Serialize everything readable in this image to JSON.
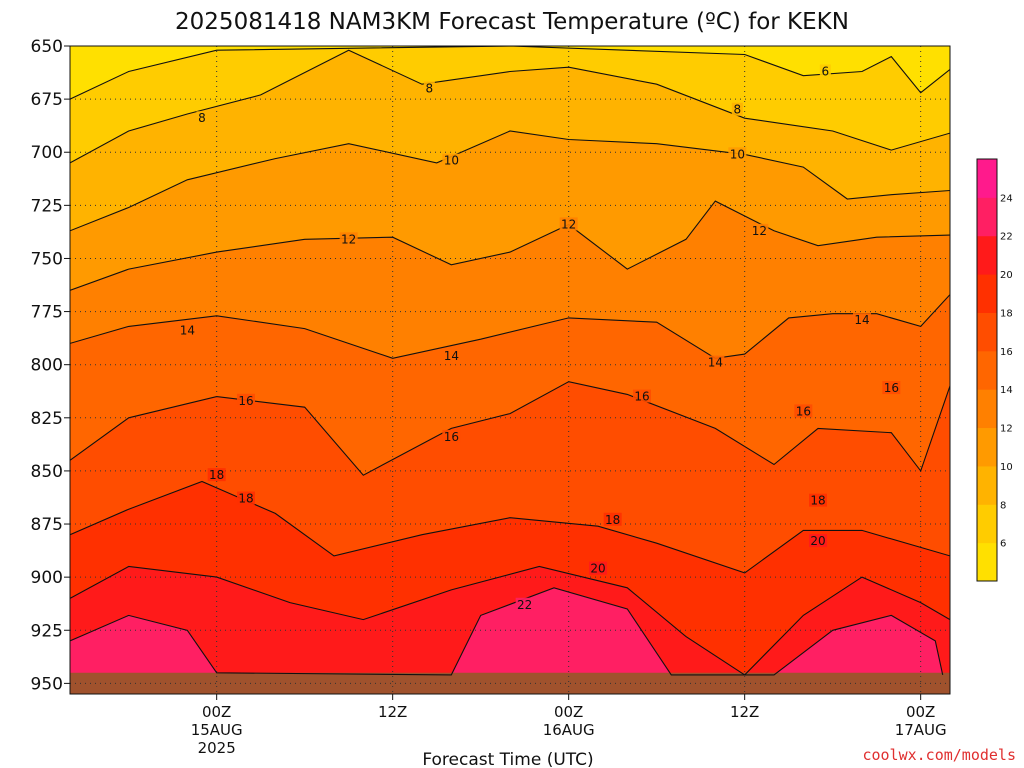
{
  "chart_data": {
    "type": "heatmap",
    "title": "2025081418 NAM3KM Forecast Temperature (ºC) for KEKN",
    "xlabel": "Forecast Time (UTC)",
    "ylabel": "",
    "credit": "coolwx.com/models",
    "y_scale": "pressure (hPa), increasing downward",
    "ylim": [
      650,
      955
    ],
    "y_ticks": [
      650,
      675,
      700,
      725,
      750,
      775,
      800,
      825,
      850,
      875,
      900,
      925,
      950
    ],
    "xlim_hours": [
      -10,
      50
    ],
    "x_ticks": [
      {
        "hour": 0,
        "lines": [
          "00Z",
          "15AUG",
          "2025"
        ]
      },
      {
        "hour": 12,
        "lines": [
          "12Z"
        ]
      },
      {
        "hour": 24,
        "lines": [
          "00Z",
          "16AUG"
        ]
      },
      {
        "hour": 36,
        "lines": [
          "12Z"
        ]
      },
      {
        "hour": 48,
        "lines": [
          "00Z",
          "17AUG"
        ]
      }
    ],
    "grid": true,
    "colorbar": {
      "placement": "right",
      "levels": [
        4,
        6,
        8,
        10,
        12,
        14,
        16,
        18,
        20,
        22,
        24,
        26
      ],
      "tick_labels": [
        "6",
        "8",
        "10",
        "12",
        "14",
        "16",
        "18",
        "20",
        "22",
        "24"
      ],
      "colors": [
        "#ffe000",
        "#ffcc00",
        "#ffb300",
        "#ff9a00",
        "#ff8000",
        "#ff6600",
        "#ff4d00",
        "#ff3000",
        "#ff1a1a",
        "#ff1f63",
        "#ff1a8c"
      ]
    },
    "ground_color": "#a0522d",
    "contour_lines": [
      {
        "level": 6,
        "points": [
          [
            -10,
            675
          ],
          [
            -6,
            662
          ],
          [
            0,
            652
          ],
          [
            20,
            650
          ],
          [
            36,
            654
          ],
          [
            40,
            664
          ],
          [
            44,
            662
          ],
          [
            46,
            655
          ],
          [
            48,
            672
          ],
          [
            50,
            661
          ]
        ]
      },
      {
        "level": 8,
        "points": [
          [
            -10,
            705
          ],
          [
            -6,
            690
          ],
          [
            -2,
            682
          ],
          [
            3,
            673
          ],
          [
            9,
            652
          ],
          [
            14,
            668
          ],
          [
            20,
            662
          ],
          [
            24,
            660
          ],
          [
            30,
            668
          ],
          [
            36,
            684
          ],
          [
            42,
            690
          ],
          [
            46,
            699
          ],
          [
            50,
            691
          ]
        ]
      },
      {
        "level": 10,
        "points": [
          [
            -10,
            737
          ],
          [
            -6,
            726
          ],
          [
            -2,
            713
          ],
          [
            4,
            703
          ],
          [
            9,
            696
          ],
          [
            15,
            705
          ],
          [
            20,
            690
          ],
          [
            24,
            694
          ],
          [
            30,
            696
          ],
          [
            36,
            701
          ],
          [
            40,
            707
          ],
          [
            43,
            722
          ],
          [
            46,
            720
          ],
          [
            50,
            718
          ]
        ]
      },
      {
        "level": 12,
        "points": [
          [
            -10,
            765
          ],
          [
            -6,
            755
          ],
          [
            0,
            747
          ],
          [
            6,
            741
          ],
          [
            12,
            740
          ],
          [
            16,
            753
          ],
          [
            20,
            747
          ],
          [
            24,
            734
          ],
          [
            28,
            755
          ],
          [
            32,
            741
          ],
          [
            34,
            723
          ],
          [
            38,
            737
          ],
          [
            41,
            744
          ],
          [
            45,
            740
          ],
          [
            50,
            739
          ]
        ]
      },
      {
        "level": 14,
        "points": [
          [
            -10,
            790
          ],
          [
            -6,
            782
          ],
          [
            0,
            777
          ],
          [
            6,
            783
          ],
          [
            12,
            797
          ],
          [
            18,
            788
          ],
          [
            24,
            778
          ],
          [
            30,
            780
          ],
          [
            34,
            797
          ],
          [
            36,
            795
          ],
          [
            39,
            778
          ],
          [
            42,
            776
          ],
          [
            45,
            776
          ],
          [
            48,
            782
          ],
          [
            50,
            767
          ]
        ]
      },
      {
        "level": 16,
        "points": [
          [
            -10,
            845
          ],
          [
            -6,
            825
          ],
          [
            0,
            815
          ],
          [
            6,
            820
          ],
          [
            10,
            852
          ],
          [
            16,
            830
          ],
          [
            20,
            823
          ],
          [
            24,
            808
          ],
          [
            28,
            814
          ],
          [
            34,
            830
          ],
          [
            38,
            847
          ],
          [
            41,
            830
          ],
          [
            46,
            832
          ],
          [
            48,
            850
          ],
          [
            50,
            810
          ]
        ]
      },
      {
        "level": 18,
        "points": [
          [
            -10,
            880
          ],
          [
            -6,
            868
          ],
          [
            -1,
            855
          ],
          [
            4,
            870
          ],
          [
            8,
            890
          ],
          [
            14,
            880
          ],
          [
            20,
            872
          ],
          [
            26,
            876
          ],
          [
            30,
            884
          ],
          [
            36,
            898
          ],
          [
            40,
            878
          ],
          [
            44,
            878
          ],
          [
            50,
            890
          ]
        ]
      },
      {
        "level": 20,
        "points": [
          [
            -10,
            910
          ],
          [
            -6,
            895
          ],
          [
            0,
            900
          ],
          [
            5,
            912
          ],
          [
            10,
            920
          ],
          [
            16,
            906
          ],
          [
            22,
            895
          ],
          [
            28,
            905
          ],
          [
            32,
            928
          ],
          [
            36,
            946
          ],
          [
            40,
            918
          ],
          [
            44,
            900
          ],
          [
            48,
            912
          ],
          [
            50,
            920
          ]
        ]
      },
      {
        "level": 22,
        "points": [
          [
            -10,
            930
          ],
          [
            -6,
            918
          ],
          [
            -2,
            925
          ],
          [
            0,
            945
          ],
          [
            16,
            946
          ],
          [
            18,
            918
          ],
          [
            23,
            905
          ],
          [
            28,
            915
          ],
          [
            31,
            946
          ],
          [
            38,
            946
          ],
          [
            42,
            925
          ],
          [
            46,
            918
          ],
          [
            49,
            930
          ],
          [
            49.5,
            946
          ]
        ]
      }
    ],
    "contour_labels": [
      {
        "text": "6",
        "hour": 41.5,
        "pressure": 662
      },
      {
        "text": "8",
        "hour": 14.5,
        "pressure": 670
      },
      {
        "text": "8",
        "hour": -1,
        "pressure": 684
      },
      {
        "text": "8",
        "hour": 35.5,
        "pressure": 680
      },
      {
        "text": "10",
        "hour": 16,
        "pressure": 704
      },
      {
        "text": "10",
        "hour": 35.5,
        "pressure": 701
      },
      {
        "text": "12",
        "hour": 9,
        "pressure": 741
      },
      {
        "text": "12",
        "hour": 24,
        "pressure": 734
      },
      {
        "text": "12",
        "hour": 37,
        "pressure": 737
      },
      {
        "text": "14",
        "hour": -2,
        "pressure": 784
      },
      {
        "text": "14",
        "hour": 16,
        "pressure": 796
      },
      {
        "text": "14",
        "hour": 34,
        "pressure": 799
      },
      {
        "text": "14",
        "hour": 44,
        "pressure": 779
      },
      {
        "text": "16",
        "hour": 2,
        "pressure": 817
      },
      {
        "text": "16",
        "hour": 16,
        "pressure": 834
      },
      {
        "text": "16",
        "hour": 29,
        "pressure": 815
      },
      {
        "text": "16",
        "hour": 40,
        "pressure": 822
      },
      {
        "text": "16",
        "hour": 46,
        "pressure": 811
      },
      {
        "text": "18",
        "hour": 0,
        "pressure": 852
      },
      {
        "text": "18",
        "hour": 2,
        "pressure": 863
      },
      {
        "text": "18",
        "hour": 27,
        "pressure": 873
      },
      {
        "text": "18",
        "hour": 41,
        "pressure": 864
      },
      {
        "text": "20",
        "hour": 26,
        "pressure": 896
      },
      {
        "text": "20",
        "hour": 41,
        "pressure": 883
      },
      {
        "text": "22",
        "hour": 21,
        "pressure": 913
      }
    ]
  }
}
